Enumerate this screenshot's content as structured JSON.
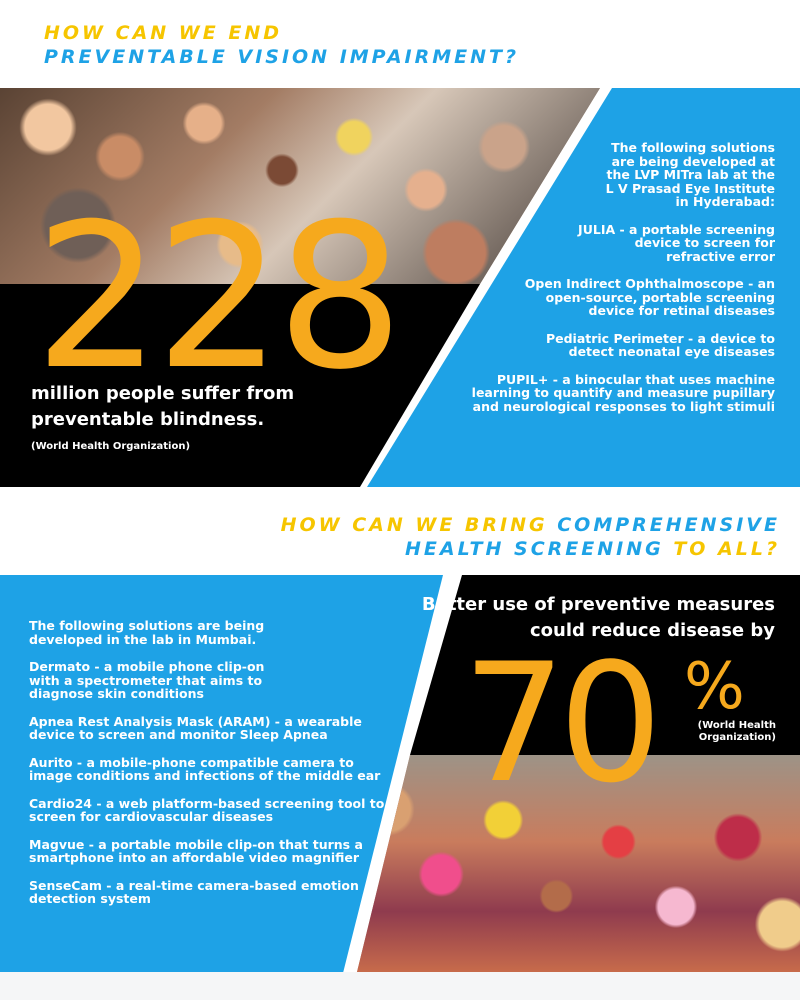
{
  "sections": [
    {
      "question_part1": "HOW CAN WE END",
      "question_part2": "PREVENTABLE VISION IMPAIRMENT?",
      "stat_value": "228",
      "stat_text_line1": "million people suffer from",
      "stat_text_line2": "preventable blindness.",
      "stat_source": "(World Health Organization)",
      "solutions_intro": "The following solutions are being developed at the LVP MITra lab at the L V Prasad Eye Institute in Hyderabad:",
      "solutions": [
        {
          "text": "JULIA - a portable screening device to screen for refractive error"
        },
        {
          "text": "Open Indirect Ophthalmoscope - an open-source, portable screening device for retinal diseases"
        },
        {
          "text": "Pediatric Perimeter - a device to detect neonatal eye diseases"
        },
        {
          "text": "PUPIL+ - a binocular that uses machine learning to quantify and measure pupillary and neurological responses to light stimuli"
        }
      ]
    },
    {
      "question_part1": "HOW CAN WE BRING",
      "question_part2": "COMPREHENSIVE",
      "question_part3": "HEALTH SCREENING",
      "question_part4": "TO ALL?",
      "stat_text_line1": "Better use of preventive measures",
      "stat_text_line2": "could reduce disease by",
      "stat_value": "70",
      "stat_percent": "%",
      "stat_source_line1": "(World Health",
      "stat_source_line2": "Organization)",
      "solutions_intro": "The following solutions are being developed in the lab in Mumbai.",
      "solutions": [
        {
          "text": "Dermato - a mobile phone clip-on with a spectrometer that aims to diagnose skin conditions"
        },
        {
          "text": "Apnea Rest Analysis Mask (ARAM) - a wearable device to screen and monitor Sleep Apnea"
        },
        {
          "text": "Aurito - a mobile-phone compatible camera to image conditions and infections of the middle ear"
        },
        {
          "text": "Cardio24 - a web platform-based screening tool to screen for cardiovascular diseases"
        },
        {
          "text": "Magvue - a portable mobile clip-on that turns a smartphone into an affordable video magnifier"
        },
        {
          "text": "SenseCam - a real-time camera-based emotion detection system"
        }
      ]
    }
  ],
  "colors": {
    "blue": "#1ea2e6",
    "yellow": "#f6c500",
    "orange": "#f6a91d",
    "black": "#000000",
    "white": "#ffffff"
  }
}
